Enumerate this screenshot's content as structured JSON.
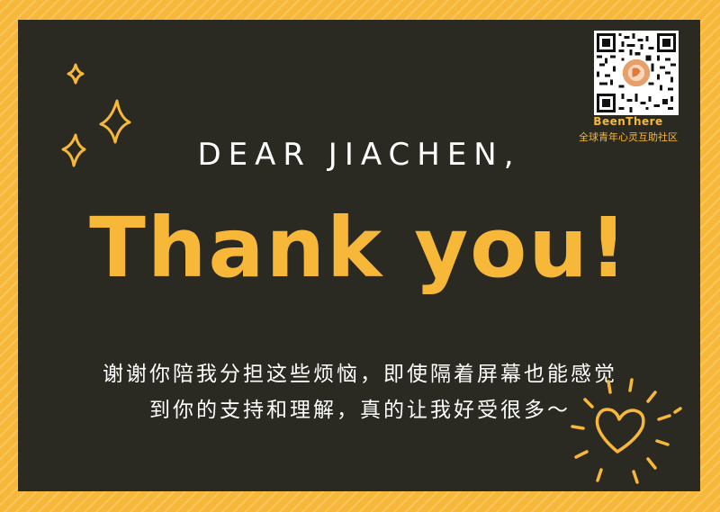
{
  "card": {
    "greeting": "DEAR JIACHEN,",
    "headline": "Thank you!",
    "message_line1": "谢谢你陪我分担这些烦恼，即使隔着屏幕也能感觉",
    "message_line2": "到你的支持和理解，真的让我好受很多～"
  },
  "branding": {
    "name": "BeenThere",
    "tagline": "全球青年心灵互助社区",
    "qr_icon": "qr-code-icon"
  },
  "decorations": {
    "sparkles_icon": "sparkle-icon",
    "heart_icon": "heart-icon"
  },
  "colors": {
    "background": "#f7b83a",
    "card": "#2a2a22",
    "accent": "#f7b83a",
    "text": "#ffffff"
  }
}
